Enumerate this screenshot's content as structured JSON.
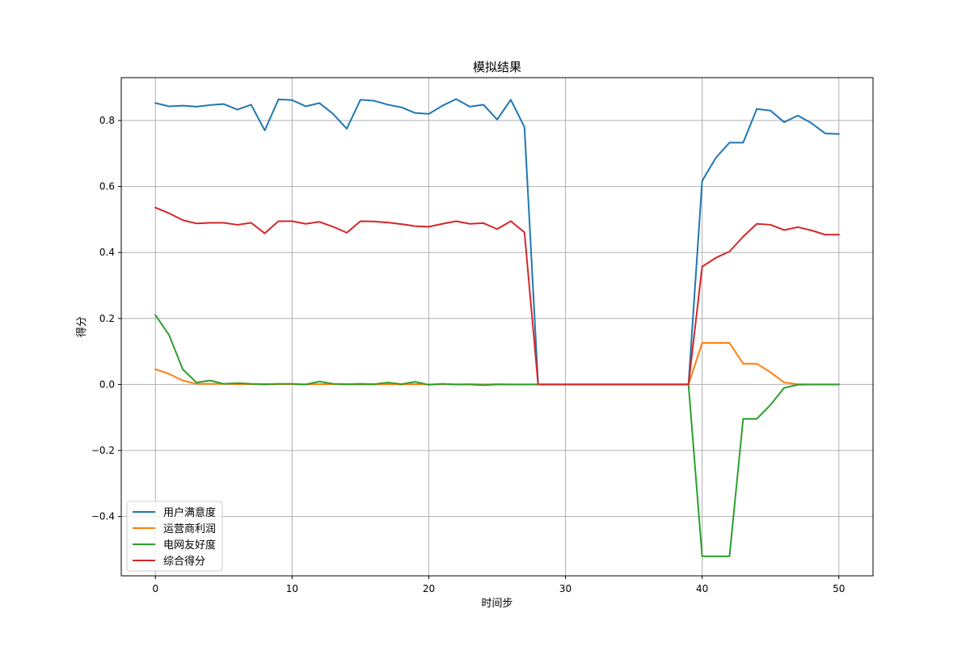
{
  "chart_data": {
    "type": "line",
    "title": "模拟结果",
    "xlabel": "时间步",
    "ylabel": "得分",
    "xlim": [
      -2.5,
      52.5
    ],
    "ylim": [
      -0.58,
      0.93
    ],
    "x_ticks": [
      0,
      10,
      20,
      30,
      40,
      50
    ],
    "x_tick_labels": [
      "0",
      "10",
      "20",
      "30",
      "40",
      "50"
    ],
    "y_ticks": [
      -0.4,
      -0.2,
      0.0,
      0.2,
      0.4,
      0.6,
      0.8
    ],
    "y_tick_labels": [
      "−0.4",
      "−0.2",
      "0.0",
      "0.2",
      "0.4",
      "0.6",
      "0.8"
    ],
    "grid": true,
    "legend_position": "lower-left",
    "x": [
      0,
      1,
      2,
      3,
      4,
      5,
      6,
      7,
      8,
      9,
      10,
      11,
      12,
      13,
      14,
      15,
      16,
      17,
      18,
      19,
      20,
      21,
      22,
      23,
      24,
      25,
      26,
      27,
      28,
      29,
      30,
      31,
      32,
      33,
      34,
      35,
      36,
      37,
      38,
      39,
      40,
      41,
      42,
      43,
      44,
      45,
      46,
      47,
      48,
      49,
      50
    ],
    "series": [
      {
        "name": "用户满意度",
        "color": "#1f77b4",
        "values": [
          0.853,
          0.843,
          0.845,
          0.842,
          0.847,
          0.85,
          0.833,
          0.848,
          0.77,
          0.864,
          0.862,
          0.843,
          0.853,
          0.82,
          0.775,
          0.863,
          0.86,
          0.848,
          0.84,
          0.823,
          0.82,
          0.845,
          0.865,
          0.842,
          0.848,
          0.803,
          0.863,
          0.78,
          0.0,
          0.0,
          0.0,
          0.0,
          0.0,
          0.0,
          0.0,
          0.0,
          0.0,
          0.0,
          0.0,
          0.0,
          0.617,
          0.687,
          0.733,
          0.733,
          0.835,
          0.83,
          0.795,
          0.815,
          0.792,
          0.761,
          0.759
        ]
      },
      {
        "name": "运营商利润",
        "color": "#ff7f0e",
        "values": [
          0.046,
          0.032,
          0.012,
          0.002,
          0.002,
          0.002,
          0.001,
          0.001,
          0.0,
          0.001,
          0.001,
          0.0,
          0.001,
          0.001,
          0.0,
          0.0,
          0.0,
          0.001,
          0.0,
          0.001,
          0.0,
          0.001,
          0.0,
          0.001,
          0.0,
          0.001,
          0.0,
          0.0,
          0.0,
          0.0,
          0.0,
          0.0,
          0.0,
          0.0,
          0.0,
          0.0,
          0.0,
          0.0,
          0.0,
          0.0,
          0.126,
          0.126,
          0.126,
          0.063,
          0.063,
          0.037,
          0.006,
          0.001,
          0.0,
          0.0,
          0.0
        ]
      },
      {
        "name": "电网友好度",
        "color": "#2ca02c",
        "values": [
          0.21,
          0.15,
          0.046,
          0.006,
          0.012,
          0.002,
          0.004,
          0.002,
          0.001,
          0.002,
          0.002,
          0.0,
          0.009,
          0.002,
          0.001,
          0.002,
          0.001,
          0.006,
          0.001,
          0.008,
          -0.001,
          0.002,
          0.0,
          0.0,
          -0.002,
          0.0,
          0.0,
          0.0,
          0.0,
          0.0,
          0.0,
          0.0,
          0.0,
          0.0,
          0.0,
          0.0,
          0.0,
          0.0,
          0.0,
          0.0,
          -0.521,
          -0.521,
          -0.521,
          -0.104,
          -0.104,
          -0.062,
          -0.01,
          -0.001,
          0.0,
          0.0,
          0.0
        ]
      },
      {
        "name": "综合得分",
        "color": "#d62728",
        "values": [
          0.536,
          0.519,
          0.498,
          0.488,
          0.49,
          0.49,
          0.484,
          0.49,
          0.458,
          0.495,
          0.495,
          0.487,
          0.493,
          0.478,
          0.46,
          0.495,
          0.494,
          0.491,
          0.486,
          0.48,
          0.478,
          0.487,
          0.495,
          0.487,
          0.489,
          0.471,
          0.495,
          0.461,
          0.0,
          0.0,
          0.0,
          0.0,
          0.0,
          0.0,
          0.0,
          0.0,
          0.0,
          0.0,
          0.0,
          0.0,
          0.357,
          0.384,
          0.403,
          0.448,
          0.487,
          0.484,
          0.468,
          0.477,
          0.467,
          0.454,
          0.454
        ]
      }
    ]
  }
}
